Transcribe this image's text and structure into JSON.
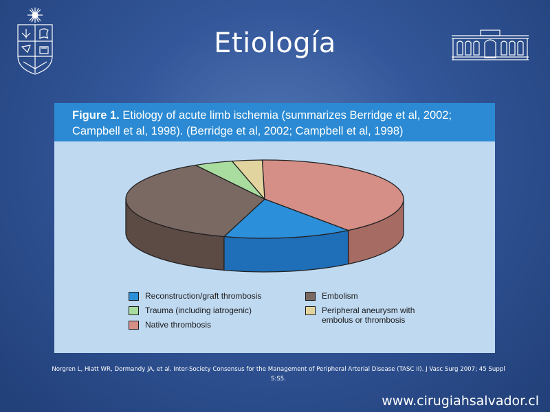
{
  "slide": {
    "title": "Etiología",
    "citation": "Norgren L, Hiatt WR, Dormandy JA, et al. Inter-Society Consensus for the Management of Peripheral Arterial Disease (TASC II). J Vasc Surg 2007; 45 Suppl S:S5.",
    "website": "www.cirugiahsalvador.cl"
  },
  "figure": {
    "label": "Figure 1.",
    "caption_line1": " Etiology of acute limb ischemia (summarizes Berridge et al, 2002;",
    "caption_line2": "Campbell et al, 1998). (Berridge et al, 2002; Campbell et al, 1998)"
  },
  "colors": {
    "caption_bar": "#2b8ad3",
    "panel": "#bfd9f1"
  },
  "chart_data": {
    "type": "pie",
    "style": "3d",
    "series": [
      {
        "name": "Native thrombosis",
        "value": 40,
        "color": "#d58f86",
        "side_color": "#a66b63"
      },
      {
        "name": "Reconstruction/graft thrombosis",
        "value": 15,
        "color": "#2c8fd9",
        "side_color": "#1f6eb8"
      },
      {
        "name": "Embolism",
        "value": 37,
        "color": "#7a6962",
        "side_color": "#5c4a44"
      },
      {
        "name": "Trauma (including iatrogenic)",
        "value": 4.5,
        "color": "#a9dc9f",
        "side_color": "#86b27c"
      },
      {
        "name": "Peripheral aneurysm with embolus or thrombosis",
        "value": 3.5,
        "color": "#e2d49f",
        "side_color": "#b9ab78"
      }
    ],
    "legend": {
      "placement": "bottom",
      "entries": [
        {
          "label": "Reconstruction/graft thrombosis",
          "color": "#2c8fd9"
        },
        {
          "label": "Trauma (including iatrogenic)",
          "color": "#a9dc9f"
        },
        {
          "label": "Native thrombosis",
          "color": "#d58f86"
        },
        {
          "label": "Embolism",
          "color": "#7a6962"
        },
        {
          "label": "Peripheral aneurysm with\nembolus or thrombosis",
          "color": "#e2d49f"
        }
      ]
    }
  }
}
